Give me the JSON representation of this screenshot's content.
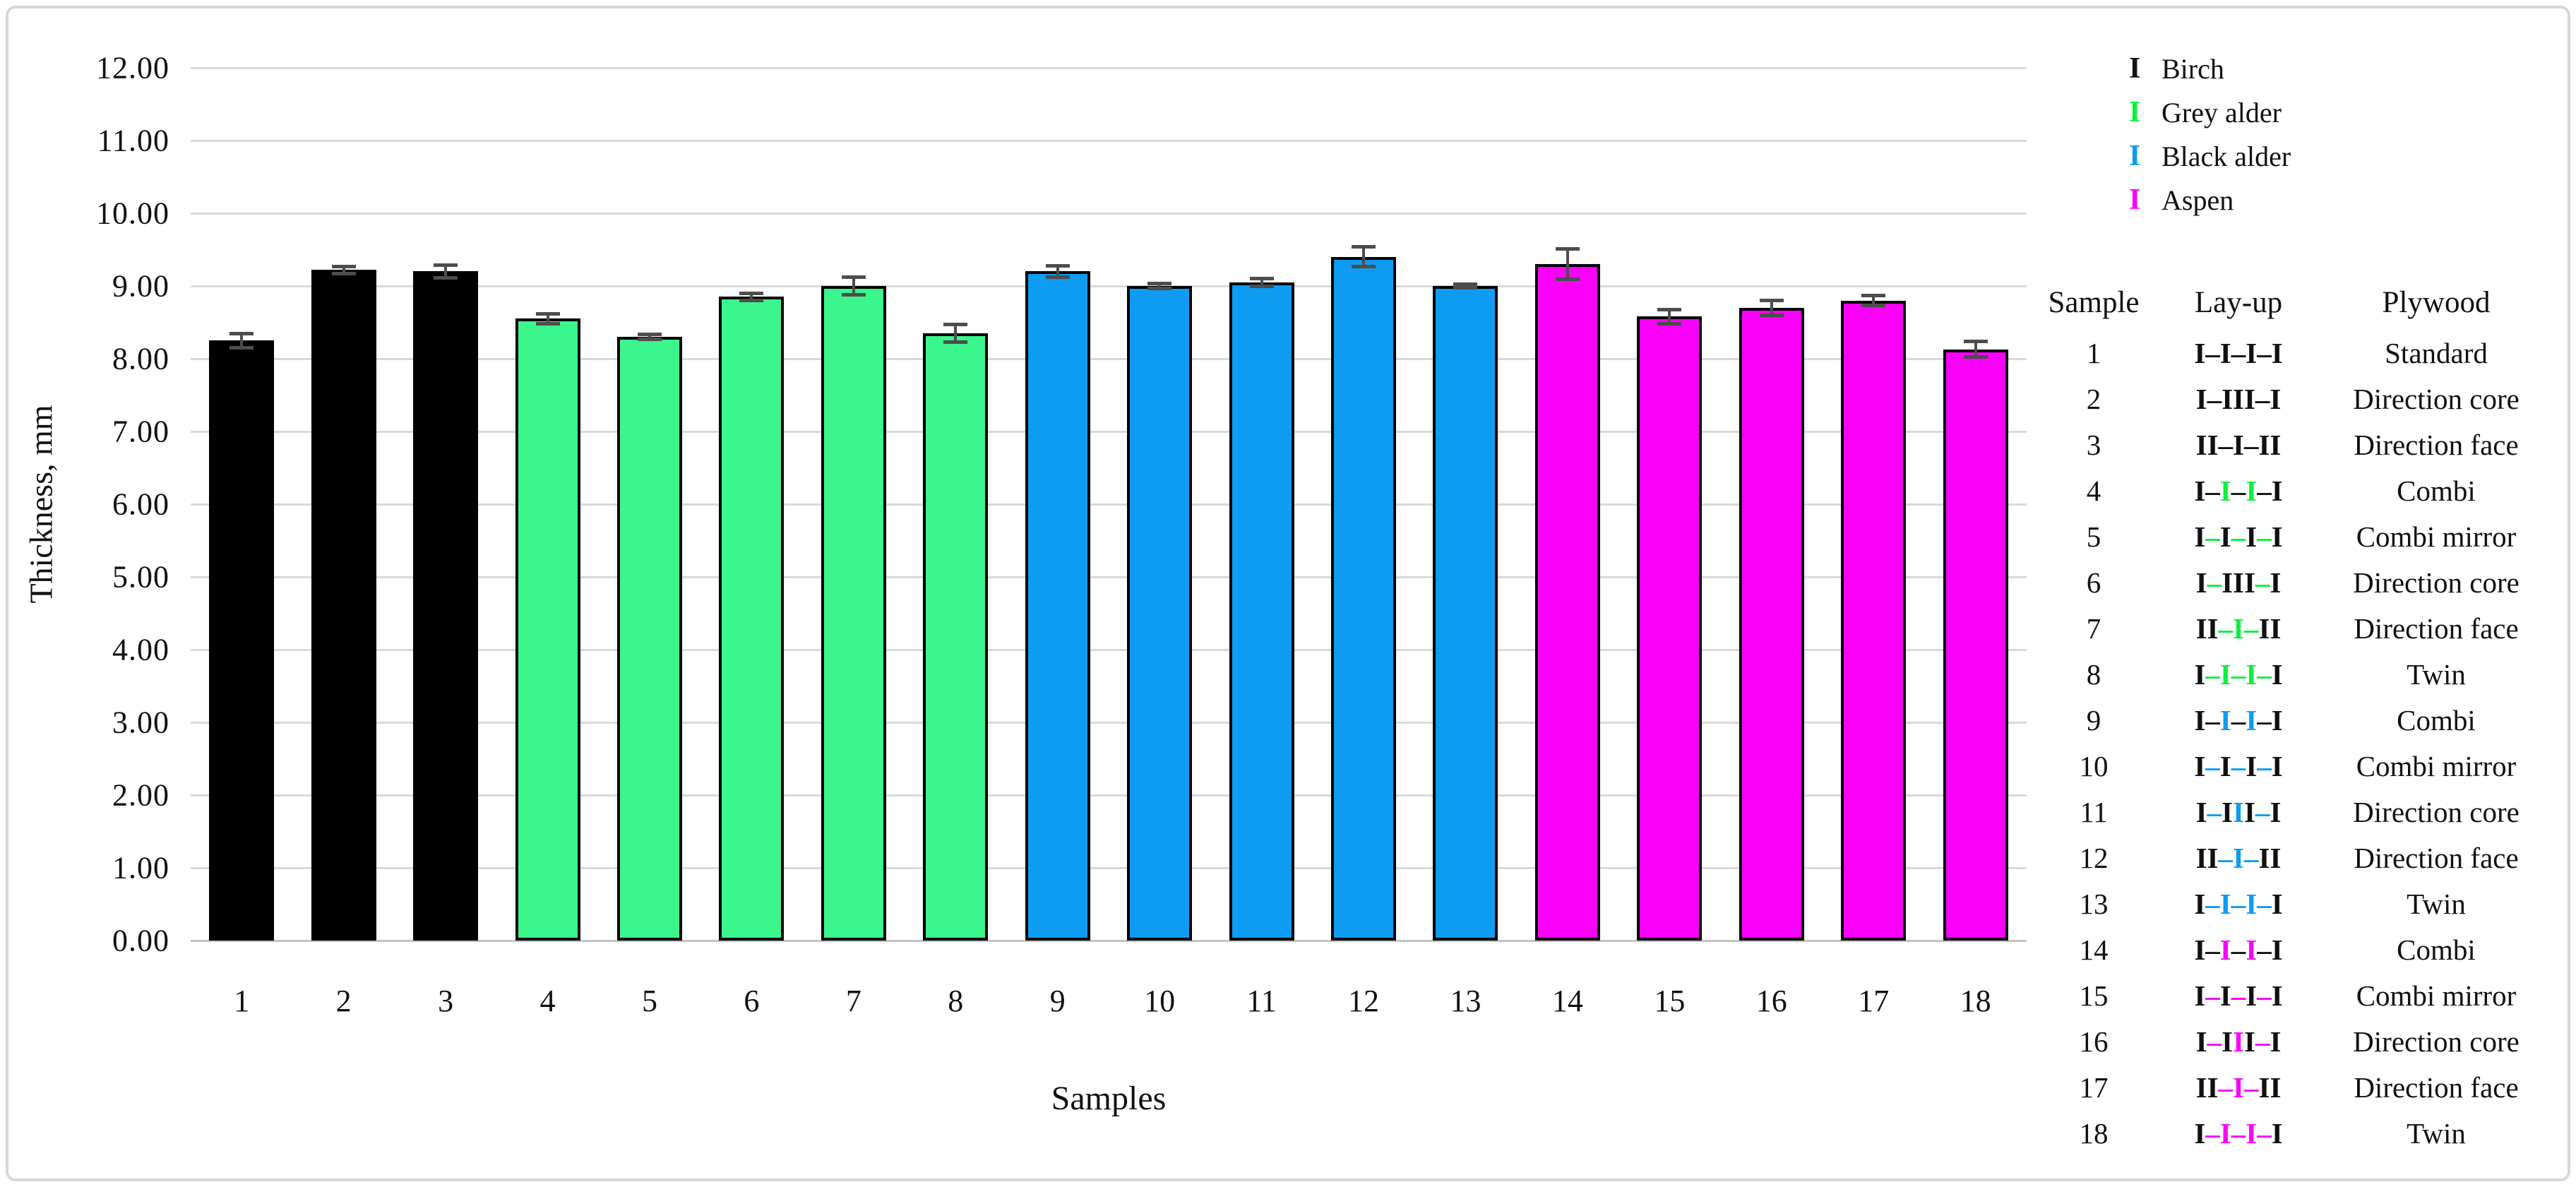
{
  "figure": {
    "background": "#ffffff",
    "frame_border_color": "#d7d7d7",
    "gridline_color": "#d9d9d9",
    "axis_baseline_color": "#c3c3c3",
    "errorbar_color": "#4d4d4d",
    "bar_outline_color": "#000000"
  },
  "colors": {
    "birch": "#000000",
    "grey_alder": "#3bf68c",
    "black_alder": "#0d9cf2",
    "aspen": "#fa00fa"
  },
  "layup_colors": {
    "k": "#111111",
    "g": "#0cf03c",
    "b": "#0d9cf2",
    "m": "#fa00fa"
  },
  "legend": {
    "items": [
      {
        "label": "Birch",
        "color_key": "birch"
      },
      {
        "label": "Grey alder",
        "color_key": "grey_alder_mark"
      },
      {
        "label": "Black alder",
        "color_key": "black_alder"
      },
      {
        "label": "Aspen",
        "color_key": "aspen"
      }
    ],
    "mark_glyph": "I",
    "mark_colors": {
      "birch": "#111111",
      "grey_alder_mark": "#0cf03c",
      "black_alder": "#0d9cf2",
      "aspen": "#fa00fa"
    }
  },
  "chart_data": {
    "type": "bar",
    "title": "",
    "xlabel": "Samples",
    "ylabel": "Thickness, mm",
    "ylim": [
      0,
      12
    ],
    "ytick_step": 1.0,
    "ytick_labels": [
      "0.00",
      "1.00",
      "2.00",
      "3.00",
      "4.00",
      "5.00",
      "6.00",
      "7.00",
      "8.00",
      "9.00",
      "10.00",
      "11.00",
      "12.00"
    ],
    "grid": true,
    "legend_position": "top-right",
    "categories": [
      "1",
      "2",
      "3",
      "4",
      "5",
      "6",
      "7",
      "8",
      "9",
      "10",
      "11",
      "12",
      "13",
      "14",
      "15",
      "16",
      "17",
      "18"
    ],
    "series": [
      {
        "name": "Thickness, mm",
        "values": [
          8.25,
          9.22,
          9.2,
          8.55,
          8.3,
          8.85,
          9.0,
          8.35,
          9.2,
          9.0,
          9.05,
          9.4,
          9.0,
          9.3,
          8.58,
          8.7,
          8.8,
          8.13
        ],
        "errors": [
          0.12,
          0.07,
          0.11,
          0.09,
          0.06,
          0.07,
          0.15,
          0.15,
          0.1,
          0.06,
          0.08,
          0.16,
          0.05,
          0.23,
          0.12,
          0.13,
          0.09,
          0.13
        ]
      }
    ],
    "bar_color_keys": [
      "birch",
      "birch",
      "birch",
      "grey_alder",
      "grey_alder",
      "grey_alder",
      "grey_alder",
      "grey_alder",
      "black_alder",
      "black_alder",
      "black_alder",
      "black_alder",
      "black_alder",
      "aspen",
      "aspen",
      "aspen",
      "aspen",
      "aspen"
    ]
  },
  "table": {
    "headers": [
      "Sample",
      "Lay-up",
      "Plywood"
    ],
    "rows": [
      {
        "sample": "1",
        "plywood": "Standard",
        "layup": [
          {
            "t": "I–I–I–I",
            "c": "k"
          }
        ]
      },
      {
        "sample": "2",
        "plywood": "Direction core",
        "layup": [
          {
            "t": "I–III–I",
            "c": "k"
          }
        ]
      },
      {
        "sample": "3",
        "plywood": "Direction face",
        "layup": [
          {
            "t": "II–I–II",
            "c": "k"
          }
        ]
      },
      {
        "sample": "4",
        "plywood": "Combi",
        "layup": [
          {
            "t": "I–",
            "c": "k"
          },
          {
            "t": "I",
            "c": "g"
          },
          {
            "t": "–",
            "c": "k"
          },
          {
            "t": "I",
            "c": "g"
          },
          {
            "t": "–I",
            "c": "k"
          }
        ]
      },
      {
        "sample": "5",
        "plywood": "Combi mirror",
        "layup": [
          {
            "t": "I",
            "c": "k"
          },
          {
            "t": "–",
            "c": "g"
          },
          {
            "t": "I",
            "c": "k"
          },
          {
            "t": "–",
            "c": "g"
          },
          {
            "t": "I",
            "c": "k"
          },
          {
            "t": "–",
            "c": "g"
          },
          {
            "t": "I",
            "c": "k"
          }
        ]
      },
      {
        "sample": "6",
        "plywood": "Direction core",
        "layup": [
          {
            "t": "I",
            "c": "k"
          },
          {
            "t": "–",
            "c": "g"
          },
          {
            "t": "III",
            "c": "k"
          },
          {
            "t": "–",
            "c": "g"
          },
          {
            "t": "I",
            "c": "k"
          }
        ]
      },
      {
        "sample": "7",
        "plywood": "Direction face",
        "layup": [
          {
            "t": "II",
            "c": "k"
          },
          {
            "t": "–I–",
            "c": "g"
          },
          {
            "t": "II",
            "c": "k"
          }
        ]
      },
      {
        "sample": "8",
        "plywood": "Twin",
        "layup": [
          {
            "t": "I",
            "c": "k"
          },
          {
            "t": "–I–I–",
            "c": "g"
          },
          {
            "t": "I",
            "c": "k"
          }
        ]
      },
      {
        "sample": "9",
        "plywood": "Combi",
        "layup": [
          {
            "t": "I–",
            "c": "k"
          },
          {
            "t": "I",
            "c": "b"
          },
          {
            "t": "–",
            "c": "k"
          },
          {
            "t": "I",
            "c": "b"
          },
          {
            "t": "–I",
            "c": "k"
          }
        ]
      },
      {
        "sample": "10",
        "plywood": "Combi mirror",
        "layup": [
          {
            "t": "I",
            "c": "k"
          },
          {
            "t": "–",
            "c": "b"
          },
          {
            "t": "I",
            "c": "k"
          },
          {
            "t": "–",
            "c": "b"
          },
          {
            "t": "I",
            "c": "k"
          },
          {
            "t": "–",
            "c": "b"
          },
          {
            "t": "I",
            "c": "k"
          }
        ]
      },
      {
        "sample": "11",
        "plywood": "Direction core",
        "layup": [
          {
            "t": "I",
            "c": "k"
          },
          {
            "t": "–",
            "c": "b"
          },
          {
            "t": "I",
            "c": "k"
          },
          {
            "t": "I",
            "c": "b"
          },
          {
            "t": "I",
            "c": "k"
          },
          {
            "t": "–",
            "c": "b"
          },
          {
            "t": "I",
            "c": "k"
          }
        ]
      },
      {
        "sample": "12",
        "plywood": "Direction face",
        "layup": [
          {
            "t": "II",
            "c": "k"
          },
          {
            "t": "–I–",
            "c": "b"
          },
          {
            "t": "II",
            "c": "k"
          }
        ]
      },
      {
        "sample": "13",
        "plywood": "Twin",
        "layup": [
          {
            "t": "I",
            "c": "k"
          },
          {
            "t": "–I–I–",
            "c": "b"
          },
          {
            "t": "I",
            "c": "k"
          }
        ]
      },
      {
        "sample": "14",
        "plywood": "Combi",
        "layup": [
          {
            "t": "I–",
            "c": "k"
          },
          {
            "t": "I",
            "c": "m"
          },
          {
            "t": "–",
            "c": "k"
          },
          {
            "t": "I",
            "c": "m"
          },
          {
            "t": "–I",
            "c": "k"
          }
        ]
      },
      {
        "sample": "15",
        "plywood": "Combi mirror",
        "layup": [
          {
            "t": "I",
            "c": "k"
          },
          {
            "t": "–",
            "c": "m"
          },
          {
            "t": "I",
            "c": "k"
          },
          {
            "t": "–",
            "c": "m"
          },
          {
            "t": "I",
            "c": "k"
          },
          {
            "t": "–",
            "c": "m"
          },
          {
            "t": "I",
            "c": "k"
          }
        ]
      },
      {
        "sample": "16",
        "plywood": "Direction core",
        "layup": [
          {
            "t": "I",
            "c": "k"
          },
          {
            "t": "–",
            "c": "m"
          },
          {
            "t": "I",
            "c": "k"
          },
          {
            "t": "I",
            "c": "m"
          },
          {
            "t": "I",
            "c": "k"
          },
          {
            "t": "–",
            "c": "m"
          },
          {
            "t": "I",
            "c": "k"
          }
        ]
      },
      {
        "sample": "17",
        "plywood": "Direction face",
        "layup": [
          {
            "t": "II",
            "c": "k"
          },
          {
            "t": "–I–",
            "c": "m"
          },
          {
            "t": "II",
            "c": "k"
          }
        ]
      },
      {
        "sample": "18",
        "plywood": "Twin",
        "layup": [
          {
            "t": "I",
            "c": "k"
          },
          {
            "t": "–I–I–",
            "c": "m"
          },
          {
            "t": "I",
            "c": "k"
          }
        ]
      }
    ]
  }
}
